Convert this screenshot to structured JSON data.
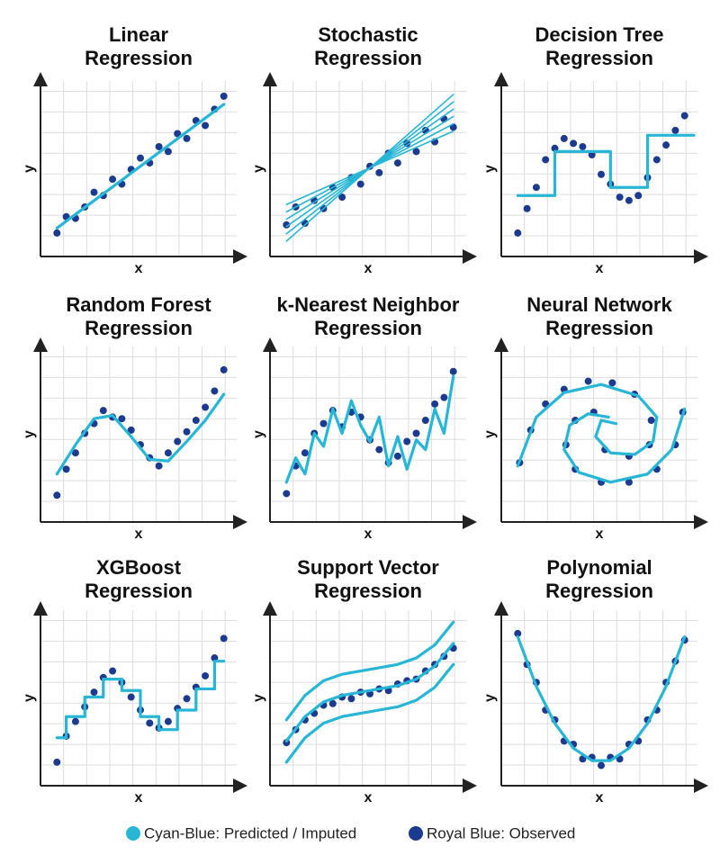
{
  "legend": [
    {
      "name": "Cyan-Blue: Predicted / Imputed",
      "color": "#27b6d6"
    },
    {
      "name": "Royal Blue: Observed",
      "color": "#1c3a8f"
    }
  ],
  "chart_data": [
    {
      "type": "scatter",
      "title": [
        "Linear",
        "Regression"
      ],
      "x_label": "x",
      "y_label": "y",
      "xlim": [
        0,
        10
      ],
      "ylim": [
        0,
        10
      ],
      "grid": true,
      "points": {
        "x": [
          0.5,
          1,
          1.5,
          2,
          2.5,
          3,
          3.5,
          4,
          4.5,
          5,
          5.5,
          6,
          6.5,
          7,
          7.5,
          8,
          8.5,
          9,
          9.5
        ],
        "y": [
          1.0,
          2.0,
          1.9,
          2.6,
          3.5,
          3.3,
          4.3,
          4.0,
          4.9,
          5.6,
          5.3,
          6.3,
          6.0,
          7.1,
          6.8,
          7.9,
          7.6,
          8.6,
          9.4
        ]
      },
      "lines": [
        {
          "x": [
            0.5,
            9.5
          ],
          "y": [
            1.3,
            8.9
          ]
        }
      ]
    },
    {
      "type": "scatter",
      "title": [
        "Stochastic",
        "Regression"
      ],
      "x_label": "x",
      "y_label": "y",
      "xlim": [
        0,
        10
      ],
      "ylim": [
        0,
        10
      ],
      "grid": true,
      "points": {
        "x": [
          0.5,
          1,
          1.5,
          2,
          2.5,
          3,
          3.5,
          4,
          4.5,
          5,
          5.5,
          6,
          6.5,
          7,
          7.5,
          8,
          8.5,
          9,
          9.5
        ],
        "y": [
          1.5,
          2.6,
          1.6,
          3.0,
          2.5,
          3.8,
          3.2,
          4.4,
          4.0,
          5.1,
          4.7,
          5.9,
          5.3,
          6.5,
          6.0,
          7.3,
          6.6,
          8.0,
          7.5
        ]
      },
      "lines": [
        {
          "x": [
            0.5,
            9.5
          ],
          "y": [
            2.75,
            7.25
          ]
        },
        {
          "x": [
            0.5,
            9.5
          ],
          "y": [
            2.3,
            7.7
          ]
        },
        {
          "x": [
            0.5,
            9.5
          ],
          "y": [
            1.85,
            8.15
          ]
        },
        {
          "x": [
            0.5,
            9.5
          ],
          "y": [
            1.4,
            8.6
          ]
        },
        {
          "x": [
            0.5,
            9.5
          ],
          "y": [
            0.95,
            9.05
          ]
        },
        {
          "x": [
            0.5,
            9.5
          ],
          "y": [
            0.5,
            9.5
          ]
        }
      ]
    },
    {
      "type": "scatter",
      "title": [
        "Decision Tree",
        "Regression"
      ],
      "x_label": "x",
      "y_label": "y",
      "xlim": [
        0,
        10
      ],
      "ylim": [
        0,
        10
      ],
      "grid": true,
      "points": {
        "x": [
          0.5,
          1,
          1.5,
          2,
          2.5,
          3,
          3.5,
          4,
          4.5,
          5,
          5.5,
          6,
          6.5,
          7,
          7.5,
          8,
          8.5,
          9,
          9.5
        ],
        "y": [
          1.0,
          2.5,
          3.8,
          5.5,
          6.2,
          6.8,
          6.5,
          6.3,
          5.8,
          4.6,
          4.0,
          3.2,
          3.0,
          3.3,
          4.4,
          5.5,
          6.4,
          7.3,
          8.2
        ]
      },
      "lines": [
        {
          "x": [
            0.5,
            2.5,
            2.5,
            5.5,
            5.5,
            7.5,
            7.5,
            10
          ],
          "y": [
            3.3,
            3.3,
            6,
            6,
            3.8,
            3.8,
            7,
            7
          ]
        }
      ]
    },
    {
      "type": "scatter",
      "title": [
        "Random Forest",
        "Regression"
      ],
      "x_label": "x",
      "y_label": "y",
      "xlim": [
        0,
        10
      ],
      "ylim": [
        0,
        10
      ],
      "grid": true,
      "points": {
        "x": [
          0.5,
          1,
          1.5,
          2,
          2.5,
          3,
          3.5,
          4,
          4.5,
          5,
          5.5,
          6,
          6.5,
          7,
          7.5,
          8,
          8.5,
          9,
          9.5
        ],
        "y": [
          1.2,
          2.8,
          3.8,
          5.0,
          5.6,
          6.4,
          6.0,
          5.9,
          5.2,
          4.3,
          3.5,
          3.0,
          3.8,
          4.5,
          5.1,
          5.8,
          6.6,
          7.6,
          8.9
        ]
      },
      "lines": [
        {
          "x": [
            0.5,
            1.5,
            2.5,
            3.5,
            4.5,
            5.5,
            6.5,
            7.5,
            8.5,
            9.5
          ],
          "y": [
            2.5,
            4.3,
            5.9,
            6.1,
            4.8,
            3.4,
            3.3,
            4.5,
            5.8,
            7.4
          ]
        }
      ]
    },
    {
      "type": "scatter",
      "title": [
        "k-Nearest Neighbor",
        "Regression"
      ],
      "x_label": "x",
      "y_label": "y",
      "xlim": [
        0,
        10
      ],
      "ylim": [
        0,
        10
      ],
      "grid": true,
      "points": {
        "x": [
          0.5,
          1,
          1.5,
          2,
          2.5,
          3,
          3.5,
          4,
          4.5,
          5,
          5.5,
          6,
          6.5,
          7,
          7.5,
          8,
          8.5,
          9,
          9.5
        ],
        "y": [
          1.3,
          3.0,
          3.8,
          5.0,
          5.6,
          6.4,
          5.4,
          6.3,
          6.0,
          4.6,
          4.0,
          3.2,
          3.6,
          4.5,
          5.0,
          5.8,
          6.8,
          7.2,
          8.8
        ]
      },
      "lines": [
        {
          "x": [
            0.5,
            1,
            1.5,
            2,
            2.5,
            3,
            3.5,
            4,
            4.5,
            5,
            5.5,
            6,
            6.5,
            7,
            7.5,
            8,
            8.5,
            9,
            9.5
          ],
          "y": [
            2,
            3.5,
            2.5,
            5,
            4.2,
            6.5,
            5,
            7,
            5.5,
            4.5,
            6,
            3,
            4.8,
            2.8,
            4.6,
            4,
            6.5,
            5,
            8.5
          ]
        }
      ]
    },
    {
      "type": "scatter",
      "title": [
        "Neural Network",
        "Regression"
      ],
      "x_label": "x",
      "y_label": "y",
      "xlim": [
        0,
        10
      ],
      "ylim": [
        0,
        10
      ],
      "grid": true,
      "points": {
        "x": [
          0.6,
          1.2,
          2,
          3,
          4.3,
          5.6,
          6.8,
          7.7,
          7.6,
          6.5,
          5.2,
          9.4,
          9,
          8,
          6.5,
          5,
          3.6,
          3.1,
          3.6,
          4.6
        ],
        "y": [
          3.2,
          5.2,
          6.8,
          7.7,
          8.2,
          8.1,
          7.4,
          5.8,
          4.3,
          3.6,
          4.0,
          6.3,
          4.3,
          2.8,
          2.0,
          2.0,
          2.8,
          4.3,
          5.8,
          6.3
        ]
      },
      "lines": [
        {
          "x": [
            0.5,
            1.5,
            3,
            5,
            7,
            8,
            7.8,
            6.8,
            5.5,
            4.7,
            5,
            5.8
          ],
          "y": [
            3,
            6,
            7.5,
            8,
            7.3,
            6,
            4.5,
            3.7,
            3.8,
            4.8,
            5.8,
            5.6
          ]
        },
        {
          "x": [
            9.5,
            8.8,
            7.5,
            5.5,
            3.8,
            3,
            3.3,
            4.3,
            5.4
          ],
          "y": [
            6.5,
            4,
            2.5,
            2,
            2.6,
            4,
            5.5,
            6.2,
            6
          ]
        }
      ]
    },
    {
      "type": "scatter",
      "title": [
        "XGBoost",
        "Regression"
      ],
      "x_label": "x",
      "y_label": "y",
      "xlim": [
        0,
        10
      ],
      "ylim": [
        0,
        10
      ],
      "grid": true,
      "points": {
        "x": [
          0.5,
          1,
          1.5,
          2,
          2.5,
          3,
          3.5,
          4,
          4.5,
          5,
          5.5,
          6,
          6.5,
          7,
          7.5,
          8,
          8.5,
          9,
          9.5
        ],
        "y": [
          1.0,
          2.6,
          3.5,
          4.4,
          5.3,
          6.2,
          6.6,
          5.9,
          5.0,
          4.2,
          3.4,
          3.1,
          3.5,
          4.3,
          4.9,
          5.6,
          6.3,
          7.4,
          8.6
        ]
      },
      "lines": [
        {
          "x": [
            0.5,
            1,
            1,
            2,
            2,
            3,
            3,
            4,
            4,
            5,
            5,
            6,
            6,
            7,
            7,
            8,
            8,
            9,
            9,
            9.5
          ],
          "y": [
            2.5,
            2.5,
            3.8,
            3.8,
            5.0,
            5.0,
            6.1,
            6.1,
            5.4,
            5.4,
            3.8,
            3.8,
            3.0,
            3.0,
            4.2,
            4.2,
            5.5,
            5.5,
            7.2,
            7.2
          ]
        }
      ]
    },
    {
      "type": "scatter",
      "title": [
        "Support Vector",
        "Regression"
      ],
      "x_label": "x",
      "y_label": "y",
      "xlim": [
        0,
        10
      ],
      "ylim": [
        0,
        10
      ],
      "grid": true,
      "points": {
        "x": [
          0.5,
          1,
          1.5,
          2,
          2.5,
          3,
          3.5,
          4,
          4.5,
          5,
          5.5,
          6,
          6.5,
          7,
          7.5,
          8,
          8.5,
          9,
          9.5
        ],
        "y": [
          2.2,
          3.0,
          3.6,
          4.0,
          4.5,
          4.6,
          5.0,
          4.9,
          5.3,
          5.2,
          5.5,
          5.4,
          5.8,
          6.0,
          6.1,
          6.6,
          7.0,
          7.5,
          8.0
        ]
      },
      "lines": [
        {
          "x": [
            0.5,
            1.5,
            2.5,
            3.5,
            4.5,
            5.5,
            6.5,
            7.5,
            8.5,
            9.5
          ],
          "y": [
            2.3,
            3.8,
            4.7,
            5.1,
            5.3,
            5.5,
            5.7,
            6.1,
            6.9,
            8.3
          ]
        },
        {
          "x": [
            0.5,
            1.5,
            2.5,
            3.5,
            4.5,
            5.5,
            6.5,
            7.5,
            8.5,
            9.5
          ],
          "y": [
            3.6,
            5.1,
            6.0,
            6.4,
            6.6,
            6.8,
            7.0,
            7.4,
            8.2,
            9.6
          ]
        },
        {
          "x": [
            0.5,
            1.5,
            2.5,
            3.5,
            4.5,
            5.5,
            6.5,
            7.5,
            8.5,
            9.5
          ],
          "y": [
            1.0,
            2.5,
            3.4,
            3.8,
            4.0,
            4.2,
            4.4,
            4.8,
            5.6,
            7.0
          ]
        }
      ]
    },
    {
      "type": "scatter",
      "title": [
        "Polynomial",
        "Regression"
      ],
      "x_label": "x",
      "y_label": "y",
      "xlim": [
        0,
        10
      ],
      "ylim": [
        0,
        10
      ],
      "grid": true,
      "points": {
        "x": [
          0.5,
          1,
          1.5,
          2,
          2.5,
          3,
          3.5,
          4,
          4.5,
          5,
          5.5,
          6,
          6.5,
          7,
          7.5,
          8,
          8.5,
          9,
          9.5
        ],
        "y": [
          8.9,
          7.0,
          5.9,
          4.2,
          3.6,
          2.3,
          2.1,
          1.2,
          1.3,
          0.8,
          1.3,
          1.2,
          2.1,
          2.3,
          3.6,
          4.2,
          5.9,
          7.2,
          8.5
        ]
      },
      "lines": [
        {
          "x": [
            0.5,
            1.5,
            2.5,
            3.5,
            4.5,
            5.5,
            6.5,
            7.5,
            8.5,
            9.5
          ],
          "y": [
            8.7,
            5.66,
            3.38,
            1.86,
            1.1,
            1.1,
            1.86,
            3.38,
            5.66,
            8.7
          ]
        }
      ]
    }
  ]
}
